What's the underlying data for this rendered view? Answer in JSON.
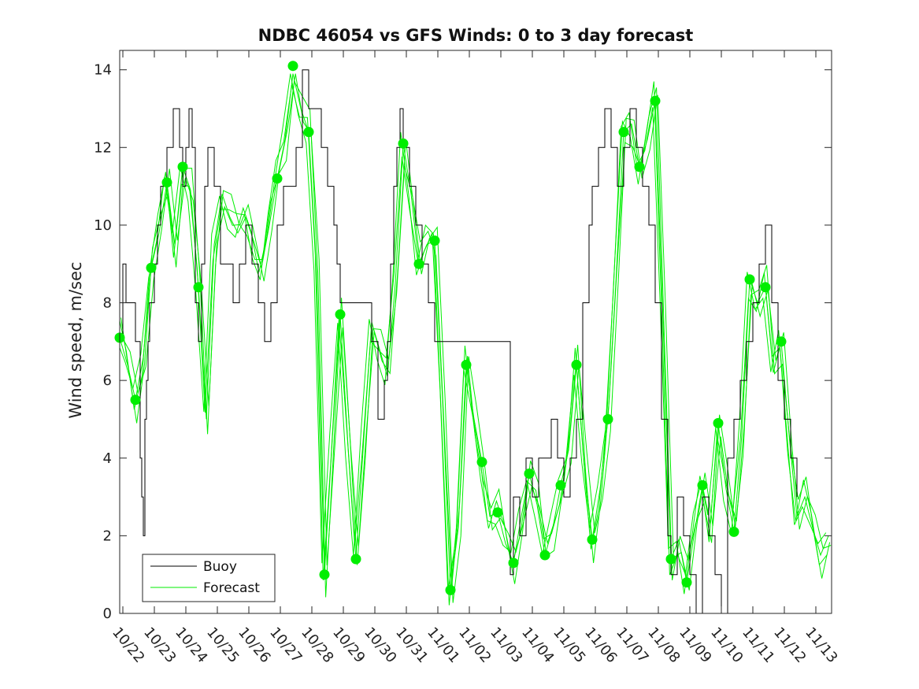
{
  "chart_data": {
    "type": "line",
    "title": "NDBC 46054 vs GFS Winds: 0 to 3 day forecast",
    "xlabel": "",
    "ylabel": "Wind speed, m/sec",
    "ylim": [
      0,
      14.5
    ],
    "xlim": [
      0,
      22.6
    ],
    "y_ticks": [
      0,
      2,
      4,
      6,
      8,
      10,
      12,
      14
    ],
    "x_ticks": [
      "10/22",
      "10/23",
      "10/24",
      "10/25",
      "10/26",
      "10/27",
      "10/28",
      "10/29",
      "10/30",
      "10/31",
      "11/01",
      "11/02",
      "11/03",
      "11/04",
      "11/05",
      "11/06",
      "11/07",
      "11/08",
      "11/09",
      "11/10",
      "11/11",
      "11/12",
      "11/13"
    ],
    "legend": {
      "position": "bottom-left",
      "entries": [
        "Buoy",
        "Forecast"
      ]
    },
    "colors": {
      "buoy": "#000000",
      "forecast": "#00ee00",
      "axis": "#262626"
    },
    "series": [
      {
        "name": "Buoy",
        "x": [
          0.0,
          0.1,
          0.2,
          0.35,
          0.5,
          0.6,
          0.65,
          0.7,
          0.75,
          0.8,
          0.85,
          0.9,
          0.95,
          1.0,
          1.1,
          1.2,
          1.3,
          1.4,
          1.5,
          1.6,
          1.7,
          1.8,
          1.9,
          2.0,
          2.1,
          2.2,
          2.3,
          2.4,
          2.5,
          2.6,
          2.7,
          2.8,
          2.9,
          3.0,
          3.2,
          3.4,
          3.6,
          3.8,
          4.0,
          4.2,
          4.4,
          4.6,
          4.8,
          5.0,
          5.2,
          5.4,
          5.6,
          5.8,
          6.0,
          6.2,
          6.4,
          6.6,
          6.8,
          6.9,
          7.0,
          8.0,
          8.2,
          8.4,
          8.5,
          8.6,
          8.7,
          8.8,
          8.9,
          9.0,
          9.2,
          9.4,
          9.6,
          9.8,
          10.0,
          12.4,
          12.5,
          12.7,
          12.9,
          13.1,
          13.3,
          13.5,
          13.7,
          13.9,
          14.1,
          14.3,
          14.5,
          14.7,
          14.9,
          15.0,
          15.2,
          15.4,
          15.6,
          15.8,
          16.0,
          16.2,
          16.4,
          16.6,
          16.8,
          17.0,
          17.2,
          17.4,
          17.5,
          17.7,
          17.9,
          18.1,
          18.3,
          18.5,
          18.7,
          18.9,
          19.1,
          19.3,
          19.5,
          19.7,
          19.9,
          20.1,
          20.3,
          20.5,
          20.7,
          20.9,
          21.1,
          21.3,
          21.5
        ],
        "values": [
          7,
          9,
          8,
          8,
          7,
          7,
          4,
          3,
          2,
          5,
          6,
          7,
          8,
          8,
          9,
          10,
          11,
          11,
          12,
          12,
          13,
          13,
          12,
          11,
          12,
          13,
          12,
          8,
          7,
          9,
          11,
          12,
          12,
          11,
          9,
          9,
          8,
          9,
          10,
          9,
          8,
          7,
          8,
          10,
          11,
          11,
          12,
          14,
          13,
          13,
          12,
          11,
          10,
          9,
          8,
          7,
          5,
          6,
          7,
          9,
          11,
          12,
          13,
          12,
          11,
          10,
          9,
          8,
          7,
          1,
          3,
          2,
          4,
          3,
          4,
          4,
          5,
          4,
          3,
          4,
          5,
          8,
          10,
          11,
          12,
          13,
          12,
          11,
          12,
          13,
          12,
          11,
          10,
          8,
          5,
          2,
          1,
          3,
          2,
          1,
          0,
          3,
          2,
          1,
          0,
          4,
          5,
          6,
          7,
          8,
          9,
          10,
          8,
          6,
          5,
          4,
          3
        ]
      },
      {
        "name": "Forecast",
        "x": [
          0.0,
          0.25,
          0.5,
          0.75,
          1.0,
          1.25,
          1.5,
          1.75,
          2.0,
          2.25,
          2.5,
          2.75,
          3.0,
          3.25,
          3.5,
          3.75,
          4.0,
          4.25,
          4.5,
          4.75,
          5.0,
          5.25,
          5.5,
          5.75,
          6.0,
          6.25,
          6.5,
          6.75,
          7.0,
          7.25,
          7.5,
          7.75,
          8.0,
          8.25,
          8.5,
          8.75,
          9.0,
          9.25,
          9.5,
          9.75,
          10.0,
          10.25,
          10.5,
          10.75,
          11.0,
          11.25,
          11.5,
          11.75,
          12.0,
          12.25,
          12.5,
          12.75,
          13.0,
          13.25,
          13.5,
          13.75,
          14.0,
          14.25,
          14.5,
          14.75,
          15.0,
          15.25,
          15.5,
          15.75,
          16.0,
          16.25,
          16.5,
          16.75,
          17.0,
          17.25,
          17.5,
          17.75,
          18.0,
          18.25,
          18.5,
          18.75,
          19.0,
          19.25,
          19.5,
          19.75,
          20.0,
          20.25,
          20.5,
          20.75,
          21.0,
          21.25,
          21.5,
          21.75,
          22.0,
          22.25,
          22.5
        ],
        "values": [
          7.1,
          6.4,
          5.5,
          6.6,
          8.9,
          9.8,
          11.1,
          9.5,
          11.5,
          10.9,
          8.4,
          5.0,
          9.5,
          10.8,
          10.2,
          9.8,
          10.2,
          9.6,
          8.9,
          10.0,
          11.2,
          12.2,
          14.1,
          13.0,
          12.4,
          8.8,
          1.0,
          4.5,
          7.7,
          4.3,
          1.4,
          4.5,
          7.5,
          6.8,
          6.1,
          8.5,
          12.1,
          10.8,
          9.0,
          9.5,
          9.6,
          5.5,
          0.6,
          2.2,
          6.4,
          5.0,
          3.9,
          2.5,
          2.6,
          1.8,
          1.3,
          2.5,
          3.6,
          2.8,
          1.5,
          2.2,
          3.3,
          4.2,
          6.4,
          3.8,
          1.9,
          3.2,
          5.0,
          8.5,
          12.4,
          12.6,
          11.5,
          12.2,
          13.2,
          7.5,
          1.4,
          1.9,
          0.8,
          2.1,
          3.3,
          2.3,
          4.9,
          3.2,
          2.1,
          4.6,
          8.6,
          8.0,
          8.4,
          6.2,
          7.0,
          4.6,
          2.5,
          3.0,
          2.2,
          1.5,
          2.0
        ]
      },
      {
        "name": "Forecast markers",
        "x": [
          0.0,
          0.5,
          1.0,
          1.5,
          2.0,
          2.5,
          5.0,
          5.5,
          6.0,
          6.5,
          7.0,
          7.5,
          9.0,
          9.5,
          10.0,
          10.5,
          11.0,
          11.5,
          12.0,
          12.5,
          13.0,
          13.5,
          14.0,
          14.5,
          15.0,
          15.5,
          16.0,
          16.5,
          17.0,
          17.5,
          18.0,
          18.5,
          19.0,
          19.5,
          20.0,
          20.5,
          21.0
        ],
        "values": [
          7.1,
          5.5,
          8.9,
          11.1,
          11.5,
          8.4,
          11.2,
          14.1,
          12.4,
          1.0,
          7.7,
          1.4,
          12.1,
          9.0,
          9.6,
          0.6,
          6.4,
          3.9,
          2.6,
          1.3,
          3.6,
          1.5,
          3.3,
          6.4,
          1.9,
          5.0,
          12.4,
          11.5,
          13.2,
          1.4,
          0.8,
          3.3,
          4.9,
          2.1,
          8.6,
          8.4,
          7.0
        ]
      }
    ]
  }
}
